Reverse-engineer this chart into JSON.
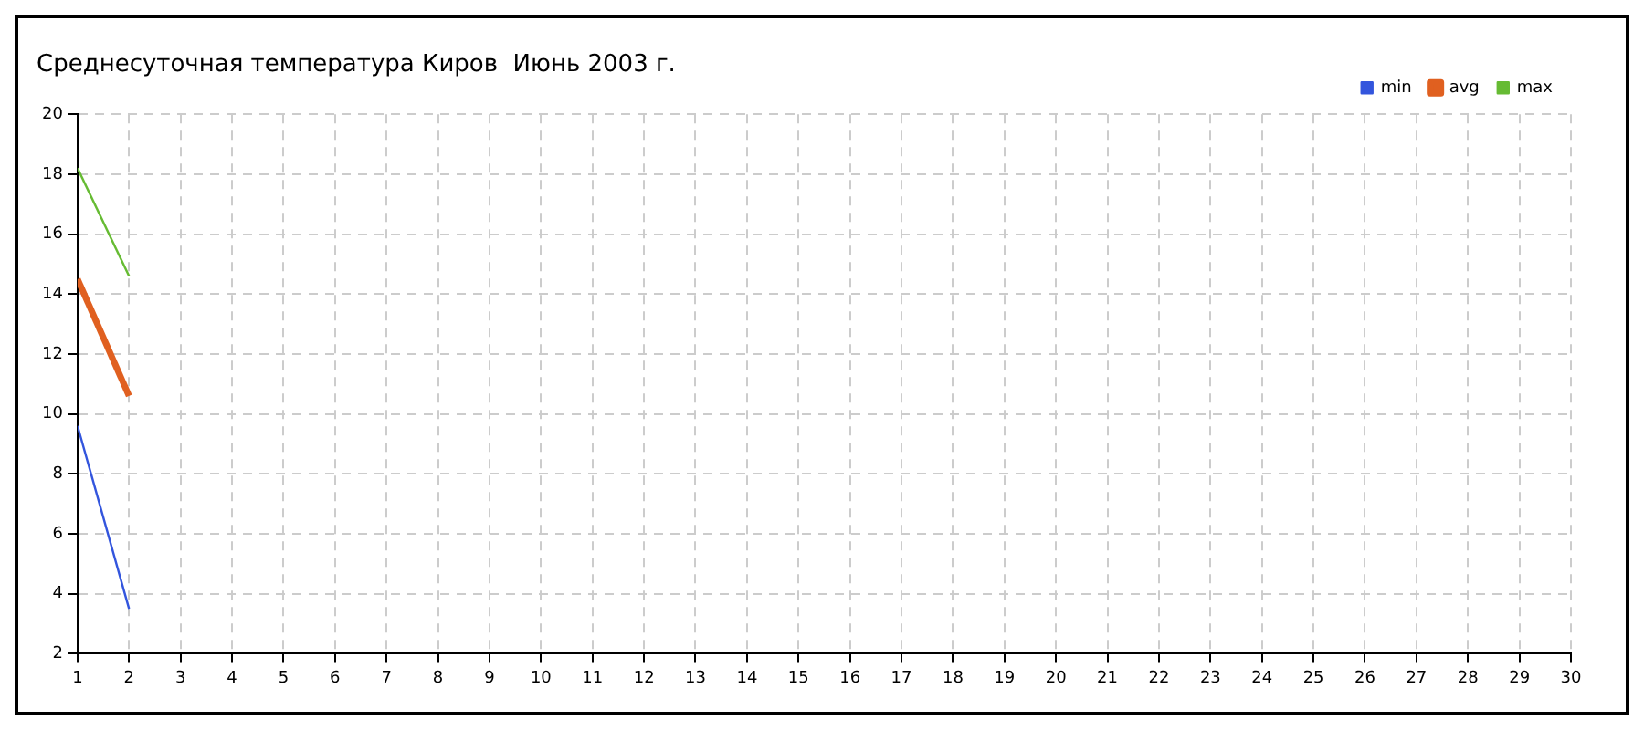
{
  "chart_data": {
    "type": "line",
    "title": "Среднесуточная температура Киров  Июнь 2003 г.",
    "x": [
      1,
      2
    ],
    "series": [
      {
        "name": "min",
        "color": "#3355dd",
        "values": [
          9.6,
          3.5
        ]
      },
      {
        "name": "avg",
        "color": "#e06020",
        "values": [
          14.5,
          10.6
        ]
      },
      {
        "name": "max",
        "color": "#66bb33",
        "values": [
          18.2,
          14.6
        ]
      }
    ],
    "xlim": [
      1,
      30
    ],
    "xticks": [
      1,
      2,
      3,
      4,
      5,
      6,
      7,
      8,
      9,
      10,
      11,
      12,
      13,
      14,
      15,
      16,
      17,
      18,
      19,
      20,
      21,
      22,
      23,
      24,
      25,
      26,
      27,
      28,
      29,
      30
    ],
    "ylim": [
      2,
      20
    ],
    "yticks": [
      2,
      4,
      6,
      8,
      10,
      12,
      14,
      16,
      18,
      20
    ],
    "grid": true,
    "legend": "top right",
    "marker": "none",
    "line_style": "solid"
  }
}
